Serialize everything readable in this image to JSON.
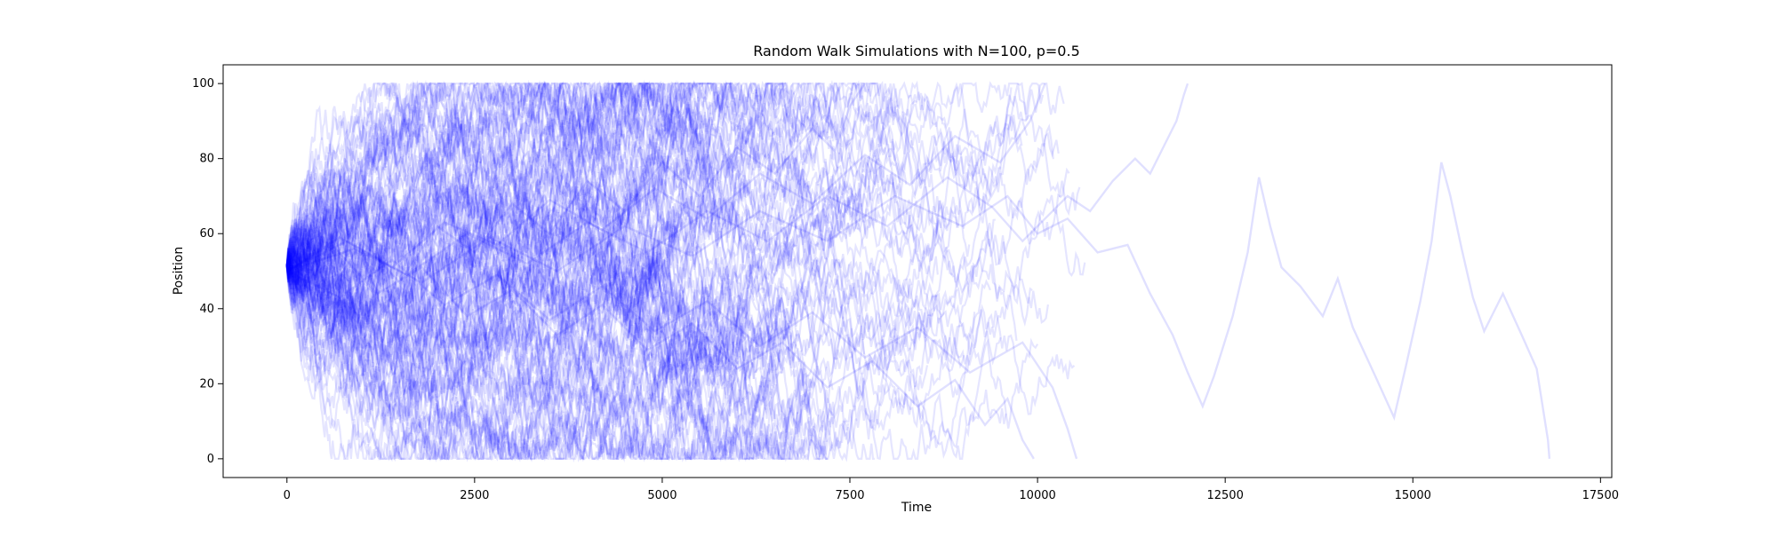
{
  "chart_data": {
    "type": "line",
    "title": "Random Walk Simulations with N=100, p=0.5",
    "xlabel": "Time",
    "ylabel": "Position",
    "xlim": [
      -850,
      17650
    ],
    "ylim": [
      -5,
      105
    ],
    "xticks": [
      0,
      2500,
      5000,
      7500,
      10000,
      12500,
      15000,
      17500
    ],
    "xtick_labels": [
      "0",
      "2500",
      "5000",
      "7500",
      "10000",
      "12500",
      "15000",
      "17500"
    ],
    "yticks": [
      0,
      20,
      40,
      60,
      80,
      100
    ],
    "ytick_labels": [
      "0",
      "20",
      "40",
      "60",
      "80",
      "100"
    ],
    "grid": false,
    "legend": "none",
    "line_color": "#0000ff",
    "line_alpha": 0.1,
    "simulation": {
      "N": 100,
      "p": 0.5,
      "start_position": 50
    },
    "series": [
      {
        "values": [
          {
            "x": 0,
            "y": 50
          },
          {
            "x": 500,
            "y": 42
          },
          {
            "x": 1000,
            "y": 58
          },
          {
            "x": 1500,
            "y": 47
          },
          {
            "x": 2000,
            "y": 62
          },
          {
            "x": 2500,
            "y": 55
          },
          {
            "x": 3000,
            "y": 68
          },
          {
            "x": 3500,
            "y": 60
          },
          {
            "x": 4000,
            "y": 74
          },
          {
            "x": 4500,
            "y": 66
          },
          {
            "x": 5000,
            "y": 79
          },
          {
            "x": 5500,
            "y": 70
          },
          {
            "x": 6000,
            "y": 83
          },
          {
            "x": 6500,
            "y": 76
          },
          {
            "x": 7000,
            "y": 88
          },
          {
            "x": 7300,
            "y": 82
          },
          {
            "x": 7500,
            "y": 94
          },
          {
            "x": 7700,
            "y": 100
          }
        ]
      },
      {
        "values": [
          {
            "x": 0,
            "y": 50
          },
          {
            "x": 600,
            "y": 57
          },
          {
            "x": 1200,
            "y": 44
          },
          {
            "x": 1800,
            "y": 51
          },
          {
            "x": 2400,
            "y": 38
          },
          {
            "x": 3000,
            "y": 45
          },
          {
            "x": 3600,
            "y": 33
          },
          {
            "x": 4200,
            "y": 41
          },
          {
            "x": 4800,
            "y": 29
          },
          {
            "x": 5400,
            "y": 36
          },
          {
            "x": 6000,
            "y": 24
          },
          {
            "x": 6600,
            "y": 31
          },
          {
            "x": 7200,
            "y": 19
          },
          {
            "x": 7800,
            "y": 26
          },
          {
            "x": 8400,
            "y": 14
          },
          {
            "x": 8900,
            "y": 21
          },
          {
            "x": 9300,
            "y": 9
          },
          {
            "x": 9600,
            "y": 16
          },
          {
            "x": 9800,
            "y": 5
          },
          {
            "x": 9950,
            "y": 0
          }
        ]
      },
      {
        "values": [
          {
            "x": 0,
            "y": 50
          },
          {
            "x": 700,
            "y": 59
          },
          {
            "x": 1400,
            "y": 51
          },
          {
            "x": 2100,
            "y": 63
          },
          {
            "x": 2800,
            "y": 57
          },
          {
            "x": 3500,
            "y": 69
          },
          {
            "x": 4200,
            "y": 61
          },
          {
            "x": 4900,
            "y": 72
          },
          {
            "x": 5600,
            "y": 64
          },
          {
            "x": 6300,
            "y": 76
          },
          {
            "x": 7000,
            "y": 68
          },
          {
            "x": 7700,
            "y": 81
          },
          {
            "x": 8300,
            "y": 73
          },
          {
            "x": 8900,
            "y": 86
          },
          {
            "x": 9500,
            "y": 79
          },
          {
            "x": 9900,
            "y": 90
          },
          {
            "x": 10100,
            "y": 100
          }
        ]
      },
      {
        "values": [
          {
            "x": 0,
            "y": 50
          },
          {
            "x": 700,
            "y": 43
          },
          {
            "x": 1400,
            "y": 53
          },
          {
            "x": 2100,
            "y": 41
          },
          {
            "x": 2800,
            "y": 49
          },
          {
            "x": 3500,
            "y": 37
          },
          {
            "x": 4200,
            "y": 46
          },
          {
            "x": 4900,
            "y": 34
          },
          {
            "x": 5600,
            "y": 42
          },
          {
            "x": 6300,
            "y": 30
          },
          {
            "x": 7000,
            "y": 39
          },
          {
            "x": 7700,
            "y": 27
          },
          {
            "x": 8400,
            "y": 35
          },
          {
            "x": 9100,
            "y": 23
          },
          {
            "x": 9800,
            "y": 31
          },
          {
            "x": 10200,
            "y": 19
          },
          {
            "x": 10400,
            "y": 8
          },
          {
            "x": 10520,
            "y": 0
          }
        ]
      },
      {
        "values": [
          {
            "x": 0,
            "y": 50
          },
          {
            "x": 800,
            "y": 58
          },
          {
            "x": 1600,
            "y": 49
          },
          {
            "x": 2400,
            "y": 60
          },
          {
            "x": 3200,
            "y": 52
          },
          {
            "x": 4000,
            "y": 63
          },
          {
            "x": 4800,
            "y": 55
          },
          {
            "x": 5600,
            "y": 66
          },
          {
            "x": 6400,
            "y": 58
          },
          {
            "x": 7200,
            "y": 70
          },
          {
            "x": 8000,
            "y": 62
          },
          {
            "x": 8800,
            "y": 75
          },
          {
            "x": 9400,
            "y": 67
          },
          {
            "x": 9800,
            "y": 58
          },
          {
            "x": 10100,
            "y": 64
          },
          {
            "x": 10400,
            "y": 70
          },
          {
            "x": 10700,
            "y": 66
          },
          {
            "x": 11000,
            "y": 74
          },
          {
            "x": 11300,
            "y": 80
          },
          {
            "x": 11500,
            "y": 76
          },
          {
            "x": 11700,
            "y": 84
          },
          {
            "x": 11850,
            "y": 90
          },
          {
            "x": 11950,
            "y": 97
          },
          {
            "x": 12000,
            "y": 100
          }
        ]
      },
      {
        "values": [
          {
            "x": 0,
            "y": 50
          },
          {
            "x": 900,
            "y": 56
          },
          {
            "x": 1800,
            "y": 47
          },
          {
            "x": 2700,
            "y": 59
          },
          {
            "x": 3600,
            "y": 50
          },
          {
            "x": 4500,
            "y": 62
          },
          {
            "x": 5400,
            "y": 54
          },
          {
            "x": 6300,
            "y": 66
          },
          {
            "x": 7200,
            "y": 58
          },
          {
            "x": 8100,
            "y": 70
          },
          {
            "x": 9000,
            "y": 62
          },
          {
            "x": 9600,
            "y": 70
          },
          {
            "x": 10000,
            "y": 60
          },
          {
            "x": 10400,
            "y": 64
          },
          {
            "x": 10800,
            "y": 55
          },
          {
            "x": 11200,
            "y": 57
          },
          {
            "x": 11500,
            "y": 44
          },
          {
            "x": 11800,
            "y": 33
          },
          {
            "x": 12000,
            "y": 23
          },
          {
            "x": 12200,
            "y": 14
          },
          {
            "x": 12350,
            "y": 22
          },
          {
            "x": 12600,
            "y": 38
          },
          {
            "x": 12800,
            "y": 55
          },
          {
            "x": 12950,
            "y": 75
          },
          {
            "x": 13100,
            "y": 62
          },
          {
            "x": 13250,
            "y": 51
          },
          {
            "x": 13500,
            "y": 46
          },
          {
            "x": 13800,
            "y": 38
          },
          {
            "x": 14000,
            "y": 48
          },
          {
            "x": 14200,
            "y": 35
          },
          {
            "x": 14500,
            "y": 22
          },
          {
            "x": 14750,
            "y": 11
          },
          {
            "x": 14900,
            "y": 24
          },
          {
            "x": 15100,
            "y": 42
          },
          {
            "x": 15250,
            "y": 58
          },
          {
            "x": 15380,
            "y": 79
          },
          {
            "x": 15500,
            "y": 70
          },
          {
            "x": 15650,
            "y": 56
          },
          {
            "x": 15800,
            "y": 43
          },
          {
            "x": 15950,
            "y": 34
          },
          {
            "x": 16200,
            "y": 44
          },
          {
            "x": 16450,
            "y": 33
          },
          {
            "x": 16650,
            "y": 24
          },
          {
            "x": 16800,
            "y": 5
          },
          {
            "x": 16820,
            "y": 0
          }
        ]
      }
    ]
  }
}
